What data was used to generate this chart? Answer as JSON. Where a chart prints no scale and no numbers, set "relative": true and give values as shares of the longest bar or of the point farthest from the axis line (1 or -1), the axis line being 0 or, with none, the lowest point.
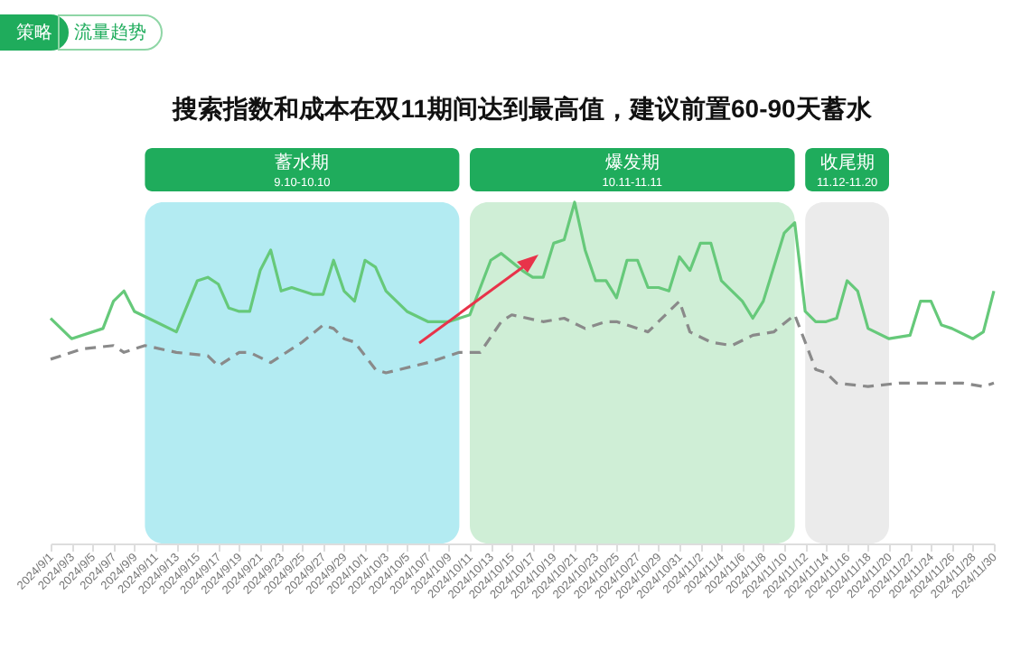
{
  "chart_data": {
    "type": "line",
    "title": "搜索指数和成本在双11期间达到最高值，建议前置60-90天蓄水",
    "annotations": [
      "策略",
      "流量趋势"
    ],
    "relative": true,
    "xlim": [
      "2024-09-01",
      "2024-11-30"
    ],
    "xticks": [
      {
        "value": "2024-09-01",
        "label": "2024/9/1"
      },
      {
        "value": "2024-09-03",
        "label": "2024/9/3"
      },
      {
        "value": "2024-09-05",
        "label": "2024/9/5"
      },
      {
        "value": "2024-09-07",
        "label": "2024/9/7"
      },
      {
        "value": "2024-09-09",
        "label": "2024/9/9"
      },
      {
        "value": "2024-09-11",
        "label": "2024/9/11"
      },
      {
        "value": "2024-09-13",
        "label": "2024/9/13"
      },
      {
        "value": "2024-09-15",
        "label": "2024/9/15"
      },
      {
        "value": "2024-09-17",
        "label": "2024/9/17"
      },
      {
        "value": "2024-09-19",
        "label": "2024/9/19"
      },
      {
        "value": "2024-09-21",
        "label": "2024/9/21"
      },
      {
        "value": "2024-09-23",
        "label": "2024/9/23"
      },
      {
        "value": "2024-09-25",
        "label": "2024/9/25"
      },
      {
        "value": "2024-09-27",
        "label": "2024/9/27"
      },
      {
        "value": "2024-09-29",
        "label": "2024/9/29"
      },
      {
        "value": "2024-10-01",
        "label": "2024/10/1"
      },
      {
        "value": "2024-10-03",
        "label": "2024/10/3"
      },
      {
        "value": "2024-10-05",
        "label": "2024/10/5"
      },
      {
        "value": "2024-10-07",
        "label": "2024/10/7"
      },
      {
        "value": "2024-10-09",
        "label": "2024/10/9"
      },
      {
        "value": "2024-10-11",
        "label": "2024/10/11"
      },
      {
        "value": "2024-10-13",
        "label": "2024/10/13"
      },
      {
        "value": "2024-10-15",
        "label": "2024/10/15"
      },
      {
        "value": "2024-10-17",
        "label": "2024/10/17"
      },
      {
        "value": "2024-10-19",
        "label": "2024/10/19"
      },
      {
        "value": "2024-10-21",
        "label": "2024/10/21"
      },
      {
        "value": "2024-10-23",
        "label": "2024/10/23"
      },
      {
        "value": "2024-10-25",
        "label": "2024/10/25"
      },
      {
        "value": "2024-10-27",
        "label": "2024/10/27"
      },
      {
        "value": "2024-10-29",
        "label": "2024/10/29"
      },
      {
        "value": "2024-10-31",
        "label": "2024/10/31"
      },
      {
        "value": "2024-11-02",
        "label": "2024/11/2"
      },
      {
        "value": "2024-11-04",
        "label": "2024/11/4"
      },
      {
        "value": "2024-11-06",
        "label": "2024/11/6"
      },
      {
        "value": "2024-11-08",
        "label": "2024/11/8"
      },
      {
        "value": "2024-11-10",
        "label": "2024/11/10"
      },
      {
        "value": "2024-11-12",
        "label": "2024/11/12"
      },
      {
        "value": "2024-11-14",
        "label": "2024/11/14"
      },
      {
        "value": "2024-11-16",
        "label": "2024/11/16"
      },
      {
        "value": "2024-11-18",
        "label": "2024/11/18"
      },
      {
        "value": "2024-11-20",
        "label": "2024/11/20"
      },
      {
        "value": "2024-11-22",
        "label": "2024/11/22"
      },
      {
        "value": "2024-11-24",
        "label": "2024/11/24"
      },
      {
        "value": "2024-11-26",
        "label": "2024/11/26"
      },
      {
        "value": "2024-11-28",
        "label": "2024/11/28"
      },
      {
        "value": "2024-11-30",
        "label": "2024/11/30"
      }
    ],
    "series": [
      {
        "color": "#66c97a",
        "x": [
          "2024-09-01",
          "2024-09-03",
          "2024-09-06",
          "2024-09-07",
          "2024-09-08",
          "2024-09-09",
          "2024-09-11",
          "2024-09-13",
          "2024-09-15",
          "2024-09-16",
          "2024-09-17",
          "2024-09-18",
          "2024-09-19",
          "2024-09-20",
          "2024-09-21",
          "2024-09-22",
          "2024-09-23",
          "2024-09-24",
          "2024-09-26",
          "2024-09-27",
          "2024-09-28",
          "2024-09-29",
          "2024-09-30",
          "2024-10-01",
          "2024-10-02",
          "2024-10-03",
          "2024-10-05",
          "2024-10-07",
          "2024-10-09",
          "2024-10-11",
          "2024-10-13",
          "2024-10-14",
          "2024-10-16",
          "2024-10-17",
          "2024-10-18",
          "2024-10-19",
          "2024-10-20",
          "2024-10-21",
          "2024-10-22",
          "2024-10-23",
          "2024-10-24",
          "2024-10-25",
          "2024-10-26",
          "2024-10-27",
          "2024-10-28",
          "2024-10-29",
          "2024-10-30",
          "2024-10-31",
          "2024-11-01",
          "2024-11-02",
          "2024-11-03",
          "2024-11-04",
          "2024-11-06",
          "2024-11-07",
          "2024-11-08",
          "2024-11-10",
          "2024-11-11",
          "2024-11-12",
          "2024-11-13",
          "2024-11-14",
          "2024-11-15",
          "2024-11-16",
          "2024-11-17",
          "2024-11-18",
          "2024-11-20",
          "2024-11-22",
          "2024-11-23",
          "2024-11-24",
          "2024-11-25",
          "2024-11-26",
          "2024-11-28",
          "2024-11-29",
          "2024-11-30"
        ],
        "values": [
          0.66,
          0.6,
          0.63,
          0.71,
          0.74,
          0.68,
          0.65,
          0.62,
          0.77,
          0.78,
          0.76,
          0.69,
          0.68,
          0.68,
          0.8,
          0.86,
          0.74,
          0.75,
          0.73,
          0.73,
          0.83,
          0.74,
          0.71,
          0.83,
          0.81,
          0.74,
          0.68,
          0.65,
          0.65,
          0.67,
          0.83,
          0.85,
          0.8,
          0.78,
          0.78,
          0.88,
          0.89,
          1.0,
          0.86,
          0.77,
          0.77,
          0.72,
          0.83,
          0.83,
          0.75,
          0.75,
          0.74,
          0.84,
          0.8,
          0.88,
          0.88,
          0.77,
          0.71,
          0.66,
          0.71,
          0.91,
          0.94,
          0.68,
          0.65,
          0.65,
          0.66,
          0.77,
          0.74,
          0.63,
          0.6,
          0.61,
          0.71,
          0.71,
          0.64,
          0.63,
          0.6,
          0.62,
          0.74
        ]
      },
      {
        "color": "#8a8a8a",
        "line_style": "dashed",
        "x": [
          "2024-09-01",
          "2024-09-04",
          "2024-09-07",
          "2024-09-08",
          "2024-09-10",
          "2024-09-13",
          "2024-09-16",
          "2024-09-17",
          "2024-09-19",
          "2024-09-20",
          "2024-09-22",
          "2024-09-25",
          "2024-09-27",
          "2024-09-28",
          "2024-09-29",
          "2024-09-30",
          "2024-10-02",
          "2024-10-03",
          "2024-10-07",
          "2024-10-10",
          "2024-10-12",
          "2024-10-14",
          "2024-10-15",
          "2024-10-18",
          "2024-10-20",
          "2024-10-22",
          "2024-10-24",
          "2024-10-25",
          "2024-10-28",
          "2024-10-30",
          "2024-10-31",
          "2024-11-01",
          "2024-11-03",
          "2024-11-05",
          "2024-11-07",
          "2024-11-09",
          "2024-11-11",
          "2024-11-13",
          "2024-11-14",
          "2024-11-15",
          "2024-11-18",
          "2024-11-21",
          "2024-11-24",
          "2024-11-27",
          "2024-11-29",
          "2024-11-30"
        ],
        "values": [
          0.54,
          0.57,
          0.58,
          0.56,
          0.58,
          0.56,
          0.55,
          0.52,
          0.56,
          0.56,
          0.53,
          0.59,
          0.64,
          0.63,
          0.6,
          0.59,
          0.51,
          0.5,
          0.53,
          0.56,
          0.56,
          0.65,
          0.67,
          0.65,
          0.66,
          0.63,
          0.65,
          0.65,
          0.62,
          0.68,
          0.71,
          0.62,
          0.59,
          0.58,
          0.61,
          0.62,
          0.67,
          0.51,
          0.5,
          0.47,
          0.46,
          0.47,
          0.47,
          0.47,
          0.46,
          0.47
        ]
      }
    ],
    "bands": [
      {
        "axis": "x",
        "from": "2024-09-10",
        "to": "2024-10-10",
        "label": "蓄水期\n9.10-10.10",
        "color": "#b3ebf2"
      },
      {
        "axis": "x",
        "from": "2024-10-11",
        "to": "2024-11-11",
        "label": "爆发期\n10.11-11.11",
        "color": "#cfeed6"
      },
      {
        "axis": "x",
        "from": "2024-11-12",
        "to": "2024-11-20",
        "label": "收尾期\n11.12-11.20",
        "color": "#ebebeb"
      }
    ]
  }
}
